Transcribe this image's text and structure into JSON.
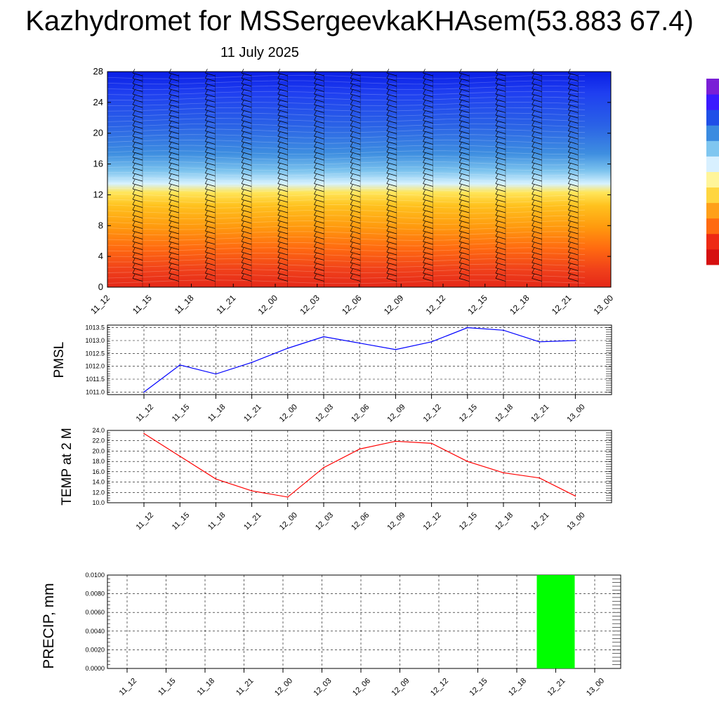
{
  "title": "Kazhydromet for MSSergeevkaKHAsem(53.883 67.4)",
  "subtitle": "11 July 2025",
  "chart_data": [
    {
      "type": "heatmap",
      "id": "cross-section",
      "title": "",
      "ylabel": "",
      "x_ticks": [
        "11_12",
        "11_15",
        "11_18",
        "11_21",
        "12_00",
        "12_03",
        "12_06",
        "12_09",
        "12_12",
        "12_15",
        "12_18",
        "12_21",
        "13_00"
      ],
      "y_ticks": [
        "0",
        "4",
        "8",
        "12",
        "16",
        "20",
        "24",
        "28"
      ],
      "ylim": [
        0,
        28
      ],
      "colorbar_colors": [
        "#7a1fd6",
        "#3a1aff",
        "#1f4fe8",
        "#3a8be0",
        "#7fc6f0",
        "#d8f0ff",
        "#fff59a",
        "#ffd640",
        "#ffa01a",
        "#ff6a10",
        "#ee2a14",
        "#d61010",
        "#ffffff"
      ],
      "palette": [
        "#0a1ee6",
        "#1f3ff0",
        "#2a62e6",
        "#3e8ee0",
        "#7cc3ee",
        "#d6f2ff",
        "#ffe65a",
        "#ffc21e",
        "#ff9a0e",
        "#ff6a10",
        "#f0401a",
        "#e42818"
      ]
    },
    {
      "type": "line",
      "id": "pmsl",
      "ylabel": "PMSL",
      "x": [
        "11_12",
        "11_15",
        "11_18",
        "11_21",
        "12_00",
        "12_03",
        "12_06",
        "12_09",
        "12_12",
        "12_15",
        "12_18",
        "12_21",
        "13_00"
      ],
      "series": [
        {
          "values": [
            1011.0,
            1012.05,
            1011.7,
            1012.15,
            1012.7,
            1013.15,
            1012.9,
            1012.65,
            1012.95,
            1013.5,
            1013.4,
            1012.95,
            1013.0
          ],
          "color": "#0000ff"
        }
      ],
      "ylim": [
        1010.9,
        1013.6
      ],
      "y_ticks": [
        "1011.0",
        "1011.5",
        "1012.0",
        "1012.5",
        "1013.0",
        "1013.5"
      ],
      "grid": true
    },
    {
      "type": "line",
      "id": "temp",
      "ylabel": "TEMP at 2 M",
      "x": [
        "11_12",
        "11_15",
        "11_18",
        "11_21",
        "12_00",
        "12_03",
        "12_06",
        "12_09",
        "12_12",
        "12_15",
        "12_18",
        "12_21",
        "13_00"
      ],
      "series": [
        {
          "values": [
            23.4,
            19.0,
            14.6,
            12.3,
            11.1,
            16.8,
            20.4,
            21.9,
            21.5,
            18.0,
            15.8,
            14.8,
            11.3
          ],
          "color": "#ff0000"
        }
      ],
      "ylim": [
        10.0,
        24.0
      ],
      "y_ticks": [
        "10.0",
        "12.0",
        "14.0",
        "16.0",
        "18.0",
        "20.0",
        "22.0",
        "24.0"
      ],
      "grid": true
    },
    {
      "type": "bar",
      "id": "precip",
      "ylabel": "PRECIP, mm",
      "categories": [
        "11_12",
        "11_15",
        "11_18",
        "11_21",
        "12_00",
        "12_03",
        "12_06",
        "12_09",
        "12_12",
        "12_15",
        "12_18",
        "12_21",
        "13_00"
      ],
      "values": [
        0,
        0,
        0,
        0,
        0,
        0,
        0,
        0,
        0,
        0,
        0,
        0.01,
        0
      ],
      "bar_color": "#00ff00",
      "ylim": [
        0,
        0.01
      ],
      "y_ticks": [
        "0.0000",
        "0.0020",
        "0.0040",
        "0.0060",
        "0.0080",
        "0.0100"
      ],
      "grid": true
    }
  ]
}
